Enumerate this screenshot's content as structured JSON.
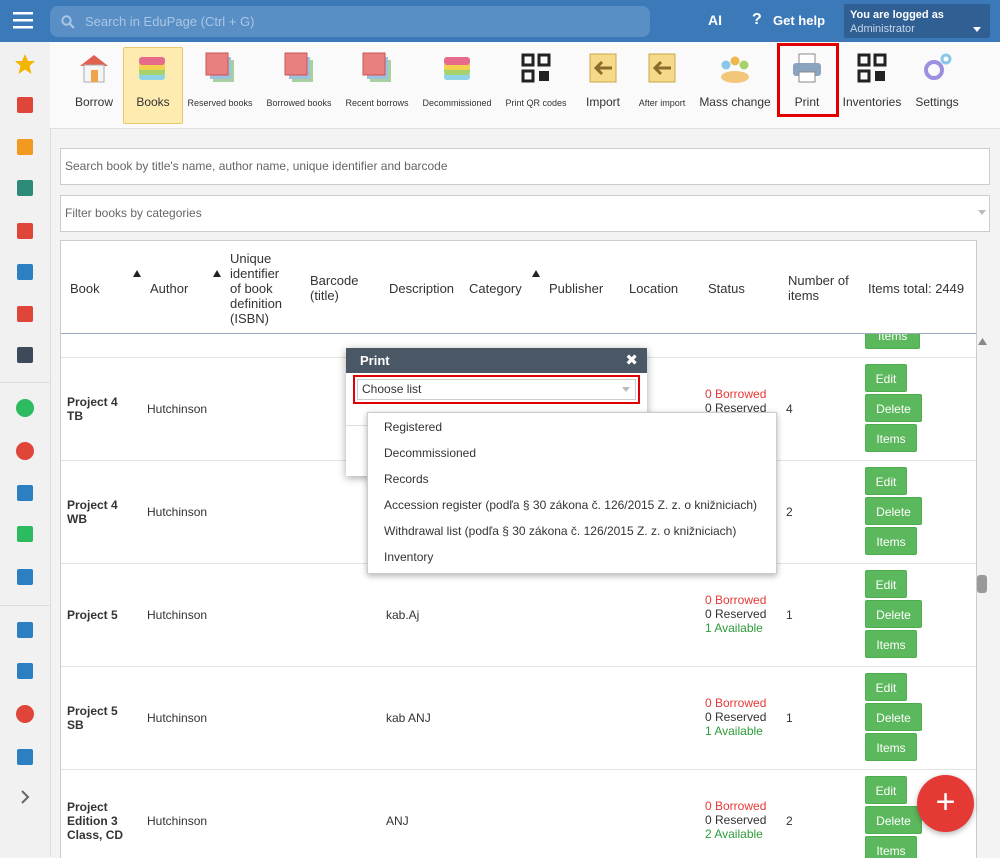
{
  "topbar": {
    "search_placeholder": "Search in EduPage (Ctrl + G)",
    "ai": "AI",
    "help": "Get help",
    "login_label": "You are logged as",
    "login_user": "Administrator"
  },
  "toolbar": [
    "Borrow",
    "Books",
    "Reserved books",
    "Borrowed books",
    "Recent borrows",
    "Decommissioned",
    "Print QR codes",
    "Import",
    "After import",
    "Mass change",
    "Print",
    "Inventories",
    "Settings"
  ],
  "search_placeholder": "Search book by title's name, author name, unique identifier and barcode",
  "filter_placeholder": "Filter books by categories",
  "table": {
    "columns": [
      "Book",
      "Author",
      "Unique identifier of book definition (ISBN)",
      "Barcode (title)",
      "Description",
      "Category",
      "Publisher",
      "Location",
      "Status",
      "Number of items",
      "Items total: 2449"
    ],
    "buttons": [
      "Edit",
      "Delete",
      "Items"
    ],
    "rows": [
      {
        "book": "Project 4 TB",
        "author": "Hutchinson",
        "description": null,
        "status": [
          "0 Borrowed",
          "0 Reserved"
        ],
        "items": "4"
      },
      {
        "book": "Project 4 WB",
        "author": "Hutchinson",
        "description": null,
        "status": [],
        "items": "2"
      },
      {
        "book": "Project 5",
        "author": "Hutchinson",
        "description": "kab.Aj",
        "status": [
          "0 Borrowed",
          "0 Reserved",
          "1 Available"
        ],
        "items": "1"
      },
      {
        "book": "Project 5 SB",
        "author": "Hutchinson",
        "description": "kab ANJ",
        "status": [
          "0 Borrowed",
          "0 Reserved",
          "1 Available"
        ],
        "items": "1"
      },
      {
        "book": "Project Edition 3 Class, CD",
        "author": "Hutchinson",
        "description": "ANJ",
        "status": [
          "0 Borrowed",
          "0 Reserved",
          "2 Available"
        ],
        "items": "2"
      }
    ]
  },
  "dialog": {
    "title": "Print",
    "select": "Choose list",
    "options": [
      "Registered",
      "Decommissioned",
      "Records",
      "Accession register (podľa § 30 zákona č. 126/2015 Z. z. o knižniciach)",
      "Withdrawal list (podľa § 30 zákona č. 126/2015 Z. z. o knižniciach)",
      "Inventory"
    ]
  },
  "fab": "+"
}
